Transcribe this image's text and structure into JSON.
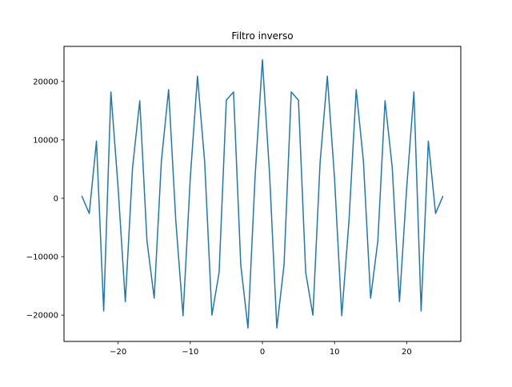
{
  "chart_data": {
    "type": "line",
    "title": "Filtro inverso",
    "xlabel": "",
    "ylabel": "",
    "xlim": [
      -27.5,
      27.5
    ],
    "ylim": [
      -24500,
      26000
    ],
    "xticks": [
      -20,
      -10,
      0,
      10,
      20
    ],
    "xtick_labels": [
      "−20",
      "−10",
      "0",
      "10",
      "20"
    ],
    "yticks": [
      -20000,
      -10000,
      0,
      10000,
      20000
    ],
    "ytick_labels": [
      "−20000",
      "−10000",
      "0",
      "10000",
      "20000"
    ],
    "grid": false,
    "legend": "none",
    "series": [
      {
        "color": "#1f77b4",
        "x": [
          -25,
          -24,
          -23,
          -22,
          -21,
          -20,
          -19,
          -18,
          -17,
          -16,
          -15,
          -14,
          -13,
          -12,
          -11,
          -10,
          -9,
          -8,
          -7,
          -6,
          -5,
          -4,
          -3,
          -2,
          -1,
          0,
          1,
          2,
          3,
          4,
          5,
          6,
          7,
          8,
          9,
          10,
          11,
          12,
          13,
          14,
          15,
          16,
          17,
          18,
          19,
          20,
          21,
          22,
          23,
          24,
          25
        ],
        "y": [
          300,
          -2600,
          9800,
          -19300,
          18200,
          1800,
          -17700,
          5200,
          16700,
          -7300,
          -17100,
          6400,
          18600,
          -3900,
          -20100,
          3400,
          20900,
          6200,
          -20000,
          -12700,
          16800,
          18200,
          -11400,
          -22200,
          4000,
          23700,
          4000,
          -22200,
          -11400,
          18200,
          16800,
          -12700,
          -20000,
          6200,
          20900,
          3400,
          -20100,
          -3900,
          18600,
          6400,
          -17100,
          -7300,
          16700,
          5200,
          -17700,
          1800,
          18200,
          -19300,
          9800,
          -2600,
          300
        ]
      }
    ]
  }
}
